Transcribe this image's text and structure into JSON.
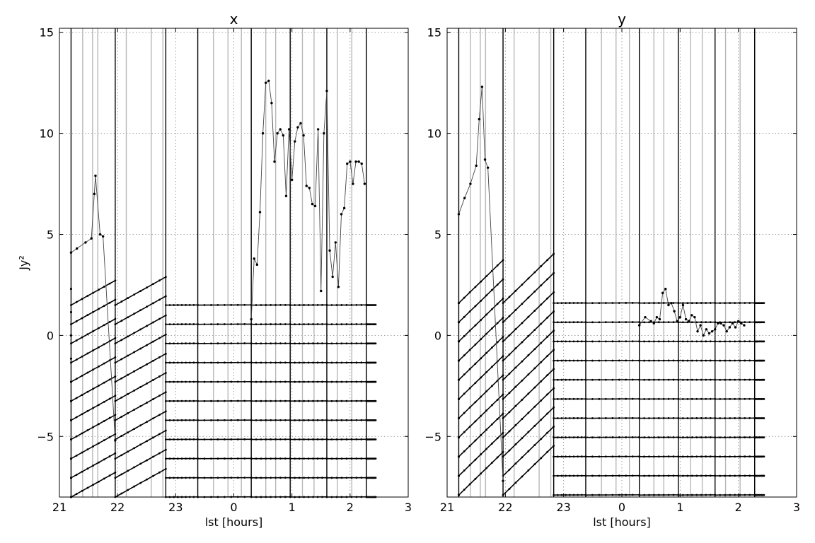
{
  "chart_data": [
    {
      "type": "line",
      "title": "x",
      "xlabel": "lst [hours]",
      "ylabel": "Jy²",
      "xlim": [
        21,
        27
      ],
      "ylim": [
        -8,
        15.2
      ],
      "xticks": [
        21,
        22,
        23,
        24,
        25,
        26,
        27
      ],
      "xtick_labels": [
        "21",
        "22",
        "23",
        "0",
        "1",
        "2",
        "3"
      ],
      "yticks": [
        -5,
        0,
        5,
        10,
        15
      ],
      "ytick_labels": [
        "−5",
        "0",
        "5",
        "10",
        "15"
      ],
      "grid": true,
      "vlines_black": [
        21.2,
        21.96,
        22.83,
        23.38,
        24.3,
        24.97,
        25.6,
        26.28
      ],
      "vlines_gray": [
        21.4,
        21.57,
        21.66,
        22.15,
        22.58,
        22.78,
        23.65,
        23.9,
        24.13,
        24.55,
        24.72,
        25.18,
        25.38,
        25.78,
        26.03,
        26.28
      ],
      "blocks": [
        {
          "x": [
            21.0,
            21.24,
            21.48,
            21.7,
            21.85,
            22.0,
            22.24,
            22.48,
            22.6,
            22.72
          ],
          "base": 4.1,
          "slope": 0.8,
          "name": "b1"
        },
        {
          "x": [
            22.0,
            22.2,
            22.4,
            22.6,
            22.78
          ],
          "base": 1.6,
          "slope": 1.0,
          "name": "b2"
        },
        {
          "x": [
            22.88,
            23.1,
            23.3
          ],
          "base": 0.9,
          "slope": 0.2,
          "name": "b3"
        },
        {
          "x": [
            23.4,
            24.4,
            25.5,
            26.5,
            27.0
          ],
          "base": 0.75,
          "slope": 0.0,
          "name": "b4"
        }
      ],
      "series": [
        {
          "x": [
            21.2,
            21.3,
            21.45,
            21.55,
            21.6,
            21.62,
            21.7,
            21.75,
            21.96
          ],
          "y": [
            4.1,
            4.3,
            4.6,
            4.8,
            7.0,
            7.9,
            5.0,
            4.9,
            -5.2
          ]
        },
        {
          "x": [
            24.3,
            24.35,
            24.4,
            24.45,
            24.5,
            24.55,
            24.6,
            24.65,
            24.7,
            24.75,
            24.8,
            24.85,
            24.9,
            24.95,
            25.0,
            25.05,
            25.1,
            25.15,
            25.2,
            25.25,
            25.3,
            25.35,
            25.4,
            25.45,
            25.5,
            25.55,
            25.6,
            25.65,
            25.7,
            25.75,
            25.8,
            25.85,
            25.9,
            25.95,
            26.0,
            26.05,
            26.1,
            26.15,
            26.2,
            26.25
          ],
          "y": [
            0.8,
            3.8,
            3.5,
            6.1,
            10.0,
            12.5,
            12.6,
            11.5,
            8.6,
            10.0,
            10.2,
            9.9,
            6.9,
            10.2,
            7.7,
            9.6,
            10.3,
            10.5,
            9.9,
            7.4,
            7.3,
            6.5,
            6.4,
            10.2,
            2.2,
            10.0,
            12.1,
            4.2,
            2.9,
            4.6,
            2.4,
            6.0,
            6.3,
            8.5,
            8.6,
            7.5,
            8.6,
            8.6,
            8.5,
            7.5
          ]
        }
      ]
    },
    {
      "type": "line",
      "title": "y",
      "xlabel": "lst [hours]",
      "ylabel": "",
      "xlim": [
        21,
        27
      ],
      "ylim": [
        -8,
        15.2
      ],
      "xticks": [
        21,
        22,
        23,
        24,
        25,
        26,
        27
      ],
      "xtick_labels": [
        "21",
        "22",
        "23",
        "0",
        "1",
        "2",
        "3"
      ],
      "yticks": [
        -5,
        0,
        5,
        10,
        15
      ],
      "ytick_labels": [
        "−5",
        "0",
        "5",
        "10",
        "15"
      ],
      "grid": true,
      "vlines_black": [
        21.2,
        21.96,
        22.83,
        23.38,
        24.3,
        24.97,
        25.6,
        26.28
      ],
      "vlines_gray": [
        21.4,
        21.57,
        21.66,
        22.15,
        22.58,
        22.78,
        23.65,
        23.9,
        24.13,
        24.55,
        24.72,
        25.18,
        25.38,
        25.78,
        26.03,
        26.28
      ],
      "series": [
        {
          "x": [
            21.2,
            21.3,
            21.4,
            21.5,
            21.55,
            21.6,
            21.65,
            21.7,
            21.96
          ],
          "y": [
            6.0,
            6.8,
            7.5,
            8.4,
            10.7,
            12.3,
            8.7,
            8.3,
            -7.2
          ]
        },
        {
          "x": [
            24.3,
            24.4,
            24.5,
            24.55,
            24.6,
            24.65,
            24.7,
            24.75,
            24.8,
            24.85,
            24.9,
            24.95,
            25.0,
            25.05,
            25.1,
            25.15,
            25.2,
            25.25,
            25.3,
            25.35,
            25.4,
            25.45,
            25.5,
            25.55,
            25.6,
            25.65,
            25.7,
            25.75,
            25.8,
            25.85,
            25.9,
            25.95,
            26.0,
            26.05,
            26.1
          ],
          "y": [
            0.5,
            0.9,
            0.7,
            0.6,
            0.9,
            0.8,
            2.1,
            2.3,
            1.5,
            1.6,
            1.2,
            0.7,
            0.9,
            1.5,
            0.8,
            0.7,
            1.0,
            0.9,
            0.2,
            0.5,
            0.0,
            0.3,
            0.1,
            0.2,
            0.3,
            0.6,
            0.6,
            0.5,
            0.2,
            0.4,
            0.6,
            0.4,
            0.7,
            0.6,
            0.5
          ]
        }
      ]
    }
  ]
}
